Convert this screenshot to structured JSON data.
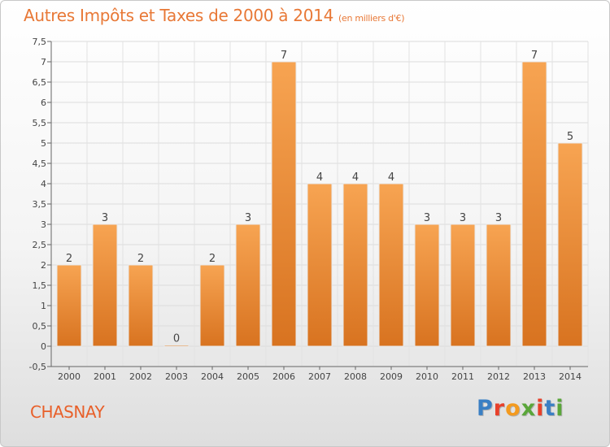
{
  "header": {
    "title": "Autres Impôts et Taxes de 2000 à 2014",
    "unit": "(en milliers d'€)"
  },
  "footer": {
    "location": "CHASNAY",
    "logo": "Proxiti"
  },
  "colors": {
    "bar_top": "#f7a452",
    "bar_bottom": "#d87320",
    "title": "#e87836",
    "logo_letters": [
      "#3a7fc4",
      "#e8402a",
      "#f39a1f",
      "#5aa63a",
      "#e8402a",
      "#3a7fc4",
      "#5aa63a"
    ]
  },
  "chart_data": {
    "type": "bar",
    "title": "Autres Impôts et Taxes de 2000 à 2014",
    "subtitle": "(en milliers d'€)",
    "xlabel": "",
    "ylabel": "",
    "categories": [
      "2000",
      "2001",
      "2002",
      "2003",
      "2004",
      "2005",
      "2006",
      "2007",
      "2008",
      "2009",
      "2010",
      "2011",
      "2012",
      "2013",
      "2014"
    ],
    "values": [
      2,
      3,
      2,
      0,
      2,
      3,
      7,
      4,
      4,
      4,
      3,
      3,
      3,
      7,
      5
    ],
    "value_labels": [
      "2",
      "3",
      "2",
      "0",
      "2",
      "3",
      "7",
      "4",
      "4",
      "4",
      "3",
      "3",
      "3",
      "7",
      "5"
    ],
    "ylim": [
      -0.5,
      7.5
    ],
    "yticks": [
      "-0,5",
      "0",
      "0,5",
      "1",
      "1,5",
      "2",
      "2,5",
      "3",
      "3,5",
      "4",
      "4,5",
      "5",
      "5,5",
      "6",
      "6,5",
      "7",
      "7,5"
    ],
    "grid": true
  }
}
